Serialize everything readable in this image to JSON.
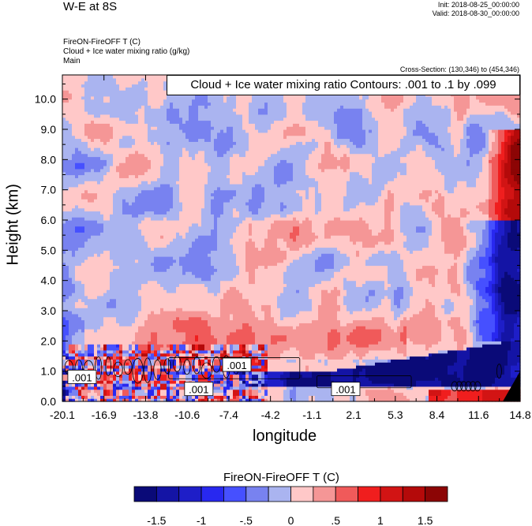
{
  "header": {
    "title": "W-E at 8S",
    "init": "Init: 2018-08-25_00:00:00",
    "valid": "Valid: 2018-08-30_00:00:00",
    "field1": "FireON-FireOFF T   (C)",
    "field2": "Cloud + Ice water mixing ratio   (g/kg)",
    "field3": "Main",
    "cross_section": "Cross-Section: (130,346) to (454,346)"
  },
  "chart_data": {
    "type": "heatmap",
    "title": "W-E at 8S",
    "xlabel": "longitude",
    "ylabel": "Height (km)",
    "xticks": [
      "-20.1",
      "-16.9",
      "-13.8",
      "-10.6",
      "-7.4",
      "-4.2",
      "-1.1",
      "2.1",
      "5.3",
      "8.4",
      "11.6",
      "14.8"
    ],
    "yticks": [
      "0.0",
      "1.0",
      "2.0",
      "3.0",
      "4.0",
      "5.0",
      "6.0",
      "7.0",
      "8.0",
      "9.0",
      "10.0"
    ],
    "xlim": [
      -20.1,
      14.8
    ],
    "ylim": [
      0.0,
      10.8
    ],
    "contour_legend": "Cloud + Ice water mixing ratio Contours: .001 to .1 by .099",
    "contour_labels": [
      {
        "text": ".001",
        "x": -18.6,
        "y": 0.8
      },
      {
        "text": ".001",
        "x": -6.8,
        "y": 1.2
      },
      {
        "text": ".001",
        "x": -9.7,
        "y": 0.4
      },
      {
        "text": ".001",
        "x": 1.5,
        "y": 0.4
      }
    ],
    "colorbar": {
      "title": "FireON-FireOFF T  (C)",
      "colors": [
        "#0a0a78",
        "#1414a5",
        "#1e1ec8",
        "#2828f0",
        "#4650ff",
        "#7882f0",
        "#aab4f0",
        "#ffc8c8",
        "#f59696",
        "#f05a5a",
        "#f01e1e",
        "#d21414",
        "#b40a0a",
        "#8c0505"
      ],
      "labels": [
        "-1.5",
        "-1",
        "-.5",
        "0",
        ".5",
        "1",
        "1.5"
      ]
    }
  }
}
